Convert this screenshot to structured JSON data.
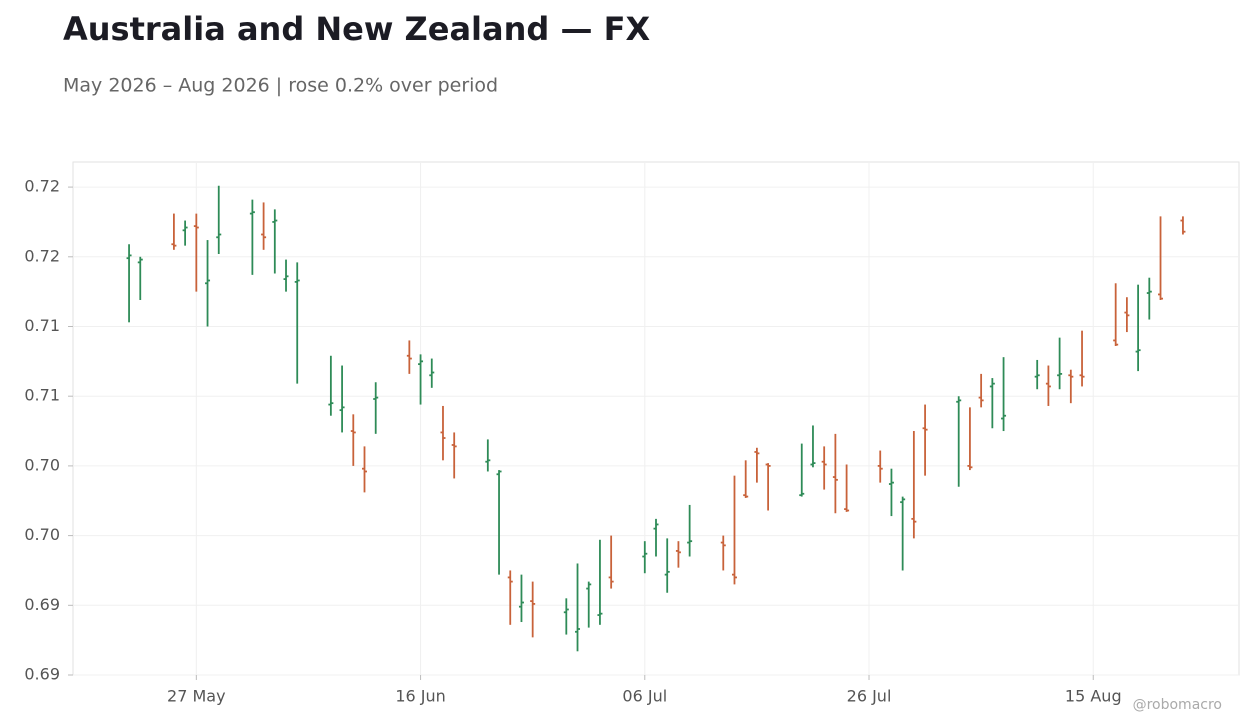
{
  "chart_data": {
    "type": "ohlc",
    "title": "Australia and New Zealand — FX",
    "subtitle": "May 2026 – Aug 2026 | rose 0.2% over period",
    "credit": "@robomacro",
    "up_color": "#2e8b57",
    "down_color": "#c8623a",
    "grid": true,
    "x": [
      "2026-05-21",
      "2026-05-22",
      "2026-05-25",
      "2026-05-26",
      "2026-05-27",
      "2026-05-28",
      "2026-05-29",
      "2026-06-01",
      "2026-06-02",
      "2026-06-03",
      "2026-06-04",
      "2026-06-05",
      "2026-06-08",
      "2026-06-09",
      "2026-06-10",
      "2026-06-11",
      "2026-06-12",
      "2026-06-15",
      "2026-06-16",
      "2026-06-17",
      "2026-06-18",
      "2026-06-19",
      "2026-06-22",
      "2026-06-23",
      "2026-06-24",
      "2026-06-25",
      "2026-06-26",
      "2026-06-29",
      "2026-06-30",
      "2026-07-01",
      "2026-07-02",
      "2026-07-03",
      "2026-07-06",
      "2026-07-07",
      "2026-07-08",
      "2026-07-09",
      "2026-07-10",
      "2026-07-13",
      "2026-07-14",
      "2026-07-15",
      "2026-07-16",
      "2026-07-17",
      "2026-07-20",
      "2026-07-21",
      "2026-07-22",
      "2026-07-23",
      "2026-07-24",
      "2026-07-27",
      "2026-07-28",
      "2026-07-29",
      "2026-07-30",
      "2026-07-31",
      "2026-08-03",
      "2026-08-04",
      "2026-08-05",
      "2026-08-06",
      "2026-08-07",
      "2026-08-10",
      "2026-08-11",
      "2026-08-12",
      "2026-08-13",
      "2026-08-14",
      "2026-08-17",
      "2026-08-18",
      "2026-08-19",
      "2026-08-20",
      "2026-08-21",
      "2026-08-23"
    ],
    "open": [
      0.7199,
      0.7196,
      0.7209,
      0.7219,
      0.7222,
      0.7181,
      0.7214,
      0.7231,
      0.7216,
      0.7225,
      0.7184,
      0.7182,
      0.7094,
      0.709,
      0.7075,
      0.7048,
      0.7098,
      0.7129,
      0.7123,
      0.7115,
      0.7074,
      0.7065,
      0.7053,
      0.7044,
      0.697,
      0.6949,
      0.6953,
      0.6945,
      0.6931,
      0.6962,
      0.6943,
      0.697,
      0.6985,
      0.7005,
      0.6972,
      0.6989,
      0.6995,
      0.6995,
      0.6972,
      0.7029,
      0.706,
      0.7051,
      0.7029,
      0.7051,
      0.7053,
      0.7042,
      0.7019,
      0.705,
      0.7037,
      0.7024,
      0.7012,
      0.7077,
      0.7096,
      0.705,
      0.7099,
      0.7107,
      0.7084,
      0.7114,
      0.7109,
      0.7115,
      0.7115,
      0.7115,
      0.714,
      0.716,
      0.7132,
      0.7174,
      0.7173,
      0.7226
    ],
    "high": [
      0.7209,
      0.72,
      0.7231,
      0.7226,
      0.7231,
      0.7212,
      0.7251,
      0.7241,
      0.7239,
      0.7234,
      0.7198,
      0.7196,
      0.7129,
      0.7122,
      0.7087,
      0.7064,
      0.711,
      0.714,
      0.713,
      0.7127,
      0.7093,
      0.7074,
      0.7069,
      0.7047,
      0.6975,
      0.6972,
      0.6967,
      0.6955,
      0.698,
      0.6967,
      0.6997,
      0.7,
      0.6996,
      0.7012,
      0.6998,
      0.6996,
      0.7022,
      0.7,
      0.7043,
      0.7054,
      0.7063,
      0.7052,
      0.7066,
      0.7079,
      0.7064,
      0.7073,
      0.7051,
      0.7061,
      0.7048,
      0.7028,
      0.7075,
      0.7094,
      0.71,
      0.7092,
      0.7116,
      0.7113,
      0.7128,
      0.7126,
      0.7122,
      0.7142,
      0.7119,
      0.7147,
      0.7181,
      0.7171,
      0.718,
      0.7185,
      0.7229,
      0.7229
    ],
    "low": [
      0.7153,
      0.7169,
      0.7205,
      0.7208,
      0.7175,
      0.715,
      0.7202,
      0.7187,
      0.7205,
      0.7188,
      0.7175,
      0.7109,
      0.7086,
      0.7074,
      0.705,
      0.7031,
      0.7073,
      0.7116,
      0.7094,
      0.7106,
      0.7054,
      0.7041,
      0.7046,
      0.6972,
      0.6936,
      0.6938,
      0.6927,
      0.6929,
      0.6917,
      0.6934,
      0.6936,
      0.6962,
      0.6973,
      0.6985,
      0.6959,
      0.6977,
      0.6985,
      0.6975,
      0.6965,
      0.7027,
      0.7038,
      0.7018,
      0.7028,
      0.7049,
      0.7033,
      0.7016,
      0.7017,
      0.7038,
      0.7014,
      0.6975,
      0.6998,
      0.7043,
      0.7035,
      0.7047,
      0.7092,
      0.7077,
      0.7075,
      0.7105,
      0.7093,
      0.7105,
      0.7095,
      0.7107,
      0.7136,
      0.7146,
      0.7118,
      0.7155,
      0.7169,
      0.7216
    ],
    "close": [
      0.7201,
      0.7198,
      0.7208,
      0.7221,
      0.7221,
      0.7183,
      0.7216,
      0.7232,
      0.7214,
      0.7226,
      0.7186,
      0.7183,
      0.7095,
      0.7092,
      0.7074,
      0.7046,
      0.7099,
      0.7127,
      0.7125,
      0.7117,
      0.707,
      0.7064,
      0.7054,
      0.7046,
      0.6967,
      0.6952,
      0.6951,
      0.6947,
      0.6933,
      0.6965,
      0.6944,
      0.6967,
      0.6987,
      0.7008,
      0.6974,
      0.6988,
      0.6996,
      0.6993,
      0.697,
      0.7028,
      0.7059,
      0.705,
      0.703,
      0.7052,
      0.7051,
      0.704,
      0.7018,
      0.7048,
      0.7038,
      0.7026,
      0.701,
      0.7076,
      0.7097,
      0.7049,
      0.7097,
      0.7109,
      0.7086,
      0.7115,
      0.7107,
      0.7116,
      0.7114,
      0.7114,
      0.7137,
      0.7158,
      0.7133,
      0.7175,
      0.717,
      0.7218
    ],
    "xlim": [
      "2026-05-16",
      "2026-08-28"
    ],
    "xticks": [
      {
        "value": "2026-05-27",
        "label": "27 May"
      },
      {
        "value": "2026-06-16",
        "label": "16 Jun"
      },
      {
        "value": "2026-07-06",
        "label": "06 Jul"
      },
      {
        "value": "2026-07-26",
        "label": "26 Jul"
      },
      {
        "value": "2026-08-15",
        "label": "15 Aug"
      }
    ],
    "ylim": [
      0.69,
      0.7268
    ],
    "yticks": [
      {
        "value": 0.725,
        "label": "0.72"
      },
      0.72,
      {
        "value": 0.715,
        "label": "0.71"
      },
      0.71,
      {
        "value": 0.705,
        "label": "0.70"
      },
      {
        "value": 0.7,
        "label": "0.70"
      },
      {
        "value": 0.695,
        "label": "0.69"
      },
      0.69
    ]
  }
}
